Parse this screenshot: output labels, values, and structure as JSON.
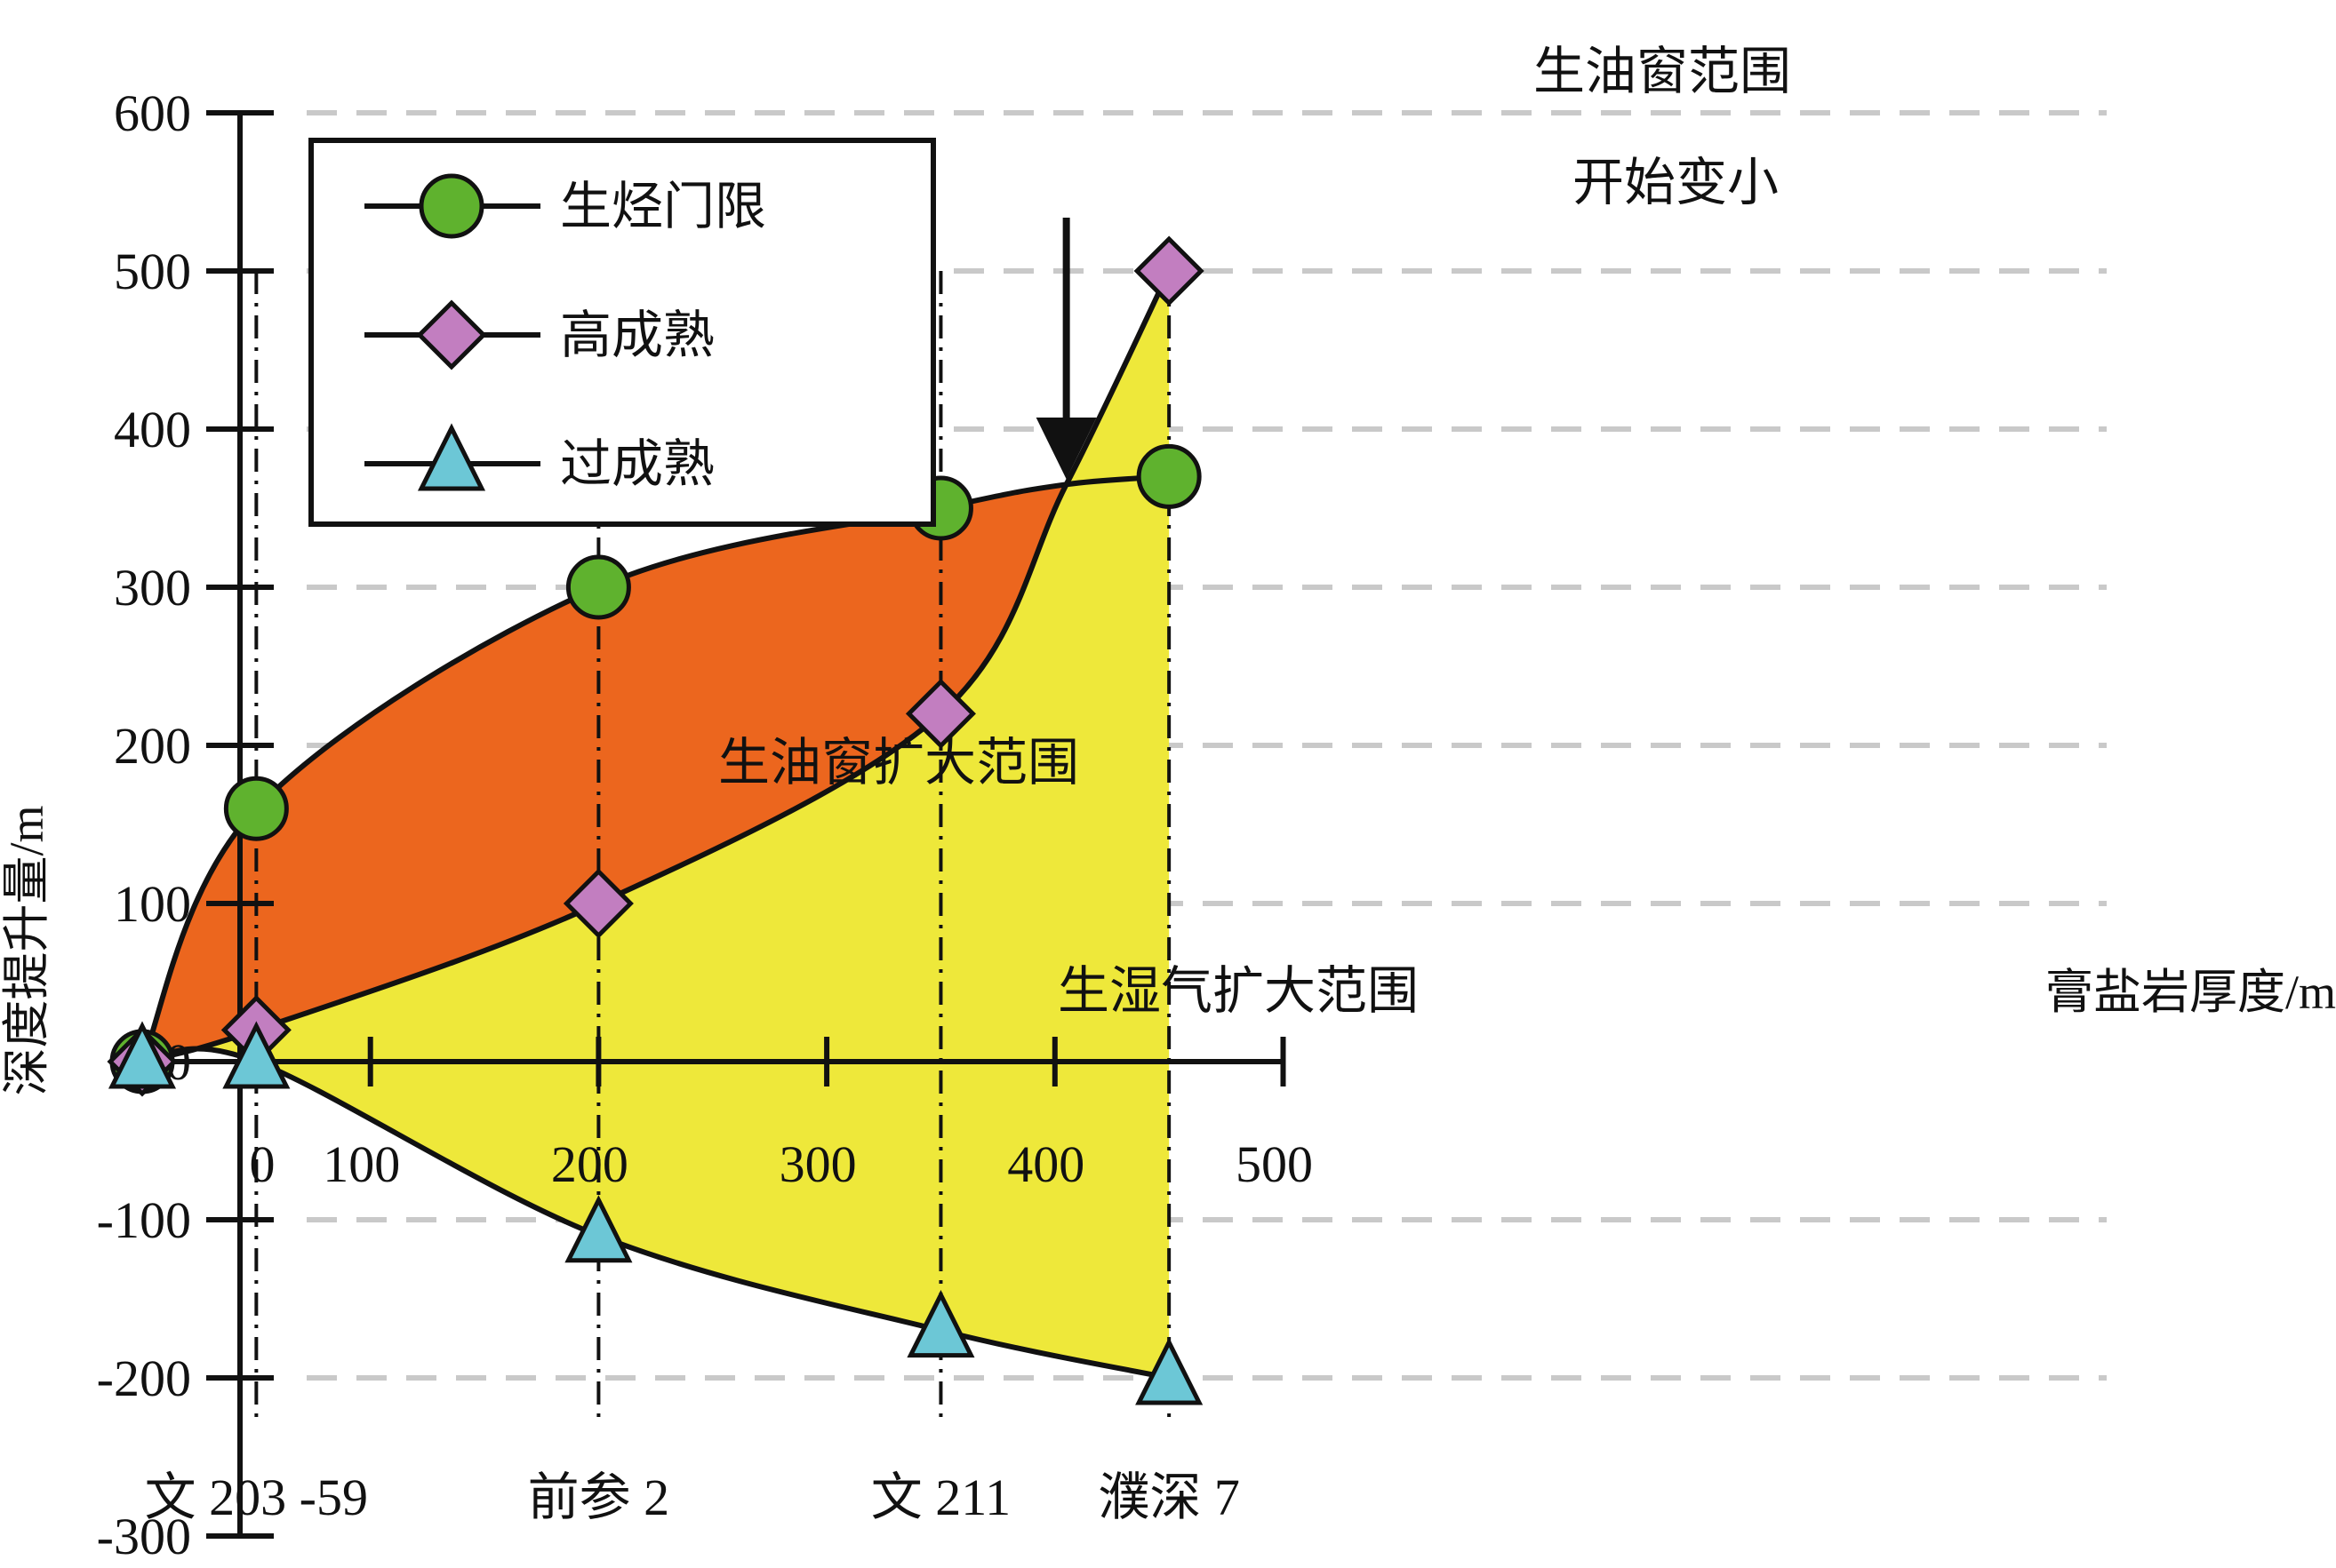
{
  "chart_data": {
    "type": "line",
    "ylabel": "深度提升量/m",
    "xlabel": "膏盐岩厚度/m",
    "xlim": [
      0,
      500
    ],
    "ylim": [
      -300,
      600
    ],
    "x_ticks": [
      0,
      100,
      200,
      300,
      400,
      500
    ],
    "y_ticks": [
      600,
      500,
      400,
      300,
      200,
      100,
      0,
      -100,
      -200,
      -300
    ],
    "grid": "dashed horizontal",
    "legend_position": "top-left",
    "series": [
      {
        "name": "生烃门限",
        "marker": "circle",
        "color": "#5fb22e",
        "x": [
          0,
          50,
          200,
          350,
          450
        ],
        "y": [
          0,
          160,
          300,
          350,
          370
        ]
      },
      {
        "name": "高成熟",
        "marker": "diamond",
        "color": "#c27ec0",
        "x": [
          0,
          50,
          200,
          350,
          450
        ],
        "y": [
          0,
          20,
          100,
          220,
          500
        ]
      },
      {
        "name": "过成熟",
        "marker": "triangle",
        "color": "#6cc7d6",
        "x": [
          0,
          50,
          200,
          350,
          450
        ],
        "y": [
          0,
          0,
          -110,
          -170,
          -200
        ]
      }
    ],
    "wells": [
      {
        "name": "文 203  -59",
        "x": 50
      },
      {
        "name": "前参  2",
        "x": 200
      },
      {
        "name": "文 211",
        "x": 350
      },
      {
        "name": "濮深  7",
        "x": 450
      }
    ],
    "regions": [
      {
        "name": "生油窗扩大范围",
        "color": "#ec661e"
      },
      {
        "name": "生湿气扩大范围",
        "color": "#eee83a"
      }
    ],
    "annotation": {
      "line1": "生油窗范围",
      "line2": "开始变小",
      "x": 405,
      "y": 365
    }
  }
}
